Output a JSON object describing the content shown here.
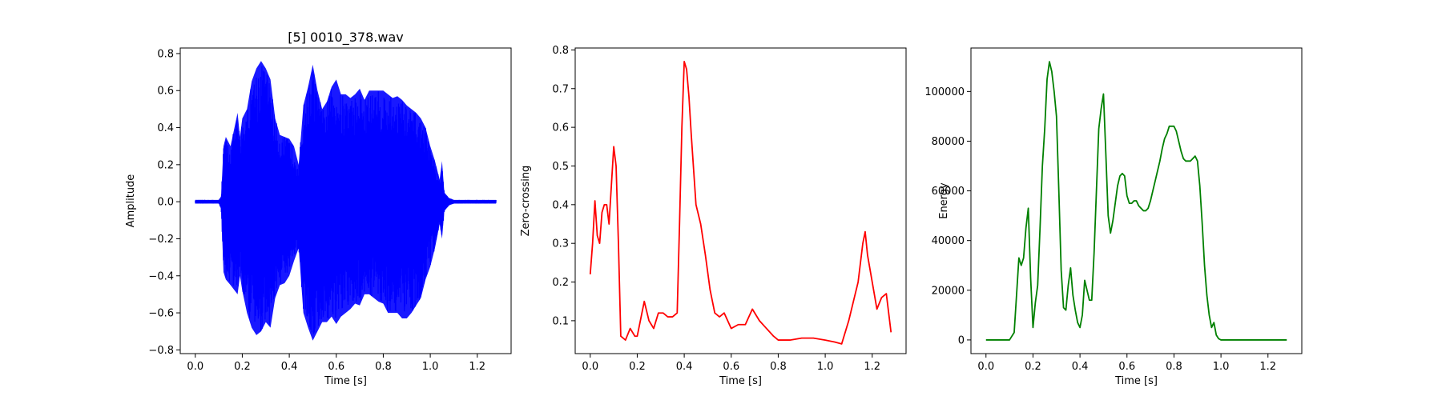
{
  "chart_data": [
    {
      "type": "line",
      "title": "[5] 0010_378.wav",
      "xlabel": "Time [s]",
      "ylabel": "Amplitude",
      "xlim": [
        -0.064,
        1.344
      ],
      "ylim": [
        -0.82,
        0.83
      ],
      "xticks": [
        0.0,
        0.2,
        0.4,
        0.6,
        0.8,
        1.0,
        1.2
      ],
      "xtick_labels": [
        "0.0",
        "0.2",
        "0.4",
        "0.6",
        "0.8",
        "1.0",
        "1.2"
      ],
      "yticks": [
        -0.8,
        -0.6,
        -0.4,
        -0.2,
        0.0,
        0.2,
        0.4,
        0.6,
        0.8
      ],
      "ytick_labels": [
        "−0.8",
        "−0.6",
        "−0.4",
        "−0.2",
        "0.0",
        "0.2",
        "0.4",
        "0.6",
        "0.8"
      ],
      "grid": false,
      "color": "#0000ff",
      "style": "waveform",
      "envelope": {
        "x": [
          0.0,
          0.1,
          0.11,
          0.12,
          0.13,
          0.15,
          0.18,
          0.19,
          0.2,
          0.22,
          0.24,
          0.26,
          0.28,
          0.3,
          0.32,
          0.34,
          0.36,
          0.38,
          0.4,
          0.42,
          0.44,
          0.46,
          0.48,
          0.5,
          0.52,
          0.54,
          0.56,
          0.58,
          0.6,
          0.62,
          0.64,
          0.66,
          0.68,
          0.7,
          0.72,
          0.74,
          0.76,
          0.78,
          0.8,
          0.82,
          0.84,
          0.86,
          0.88,
          0.9,
          0.92,
          0.94,
          0.96,
          0.98,
          1.0,
          1.02,
          1.04,
          1.05,
          1.06,
          1.08,
          1.1,
          1.28
        ],
        "upper": [
          0.01,
          0.01,
          0.03,
          0.3,
          0.35,
          0.3,
          0.48,
          0.35,
          0.45,
          0.5,
          0.65,
          0.72,
          0.76,
          0.72,
          0.66,
          0.45,
          0.36,
          0.35,
          0.34,
          0.3,
          0.2,
          0.52,
          0.62,
          0.74,
          0.6,
          0.5,
          0.54,
          0.62,
          0.66,
          0.58,
          0.58,
          0.56,
          0.58,
          0.61,
          0.55,
          0.6,
          0.6,
          0.6,
          0.6,
          0.58,
          0.56,
          0.57,
          0.55,
          0.52,
          0.5,
          0.48,
          0.45,
          0.4,
          0.3,
          0.22,
          0.12,
          0.22,
          0.05,
          0.02,
          0.01,
          0.01
        ],
        "lower": [
          -0.01,
          -0.01,
          -0.04,
          -0.38,
          -0.42,
          -0.45,
          -0.5,
          -0.4,
          -0.48,
          -0.6,
          -0.68,
          -0.72,
          -0.7,
          -0.65,
          -0.68,
          -0.52,
          -0.45,
          -0.44,
          -0.4,
          -0.32,
          -0.25,
          -0.6,
          -0.68,
          -0.75,
          -0.7,
          -0.65,
          -0.65,
          -0.62,
          -0.66,
          -0.62,
          -0.6,
          -0.58,
          -0.55,
          -0.56,
          -0.5,
          -0.5,
          -0.52,
          -0.54,
          -0.55,
          -0.6,
          -0.6,
          -0.6,
          -0.63,
          -0.63,
          -0.6,
          -0.56,
          -0.52,
          -0.42,
          -0.35,
          -0.25,
          -0.12,
          -0.2,
          -0.05,
          -0.02,
          -0.01,
          -0.01
        ]
      }
    },
    {
      "type": "line",
      "xlabel": "Time [s]",
      "ylabel": "Zero-crossing",
      "xlim": [
        -0.064,
        1.344
      ],
      "ylim": [
        0.015,
        0.805
      ],
      "xticks": [
        0.0,
        0.2,
        0.4,
        0.6,
        0.8,
        1.0,
        1.2
      ],
      "xtick_labels": [
        "0.0",
        "0.2",
        "0.4",
        "0.6",
        "0.8",
        "1.0",
        "1.2"
      ],
      "yticks": [
        0.1,
        0.2,
        0.3,
        0.4,
        0.5,
        0.6,
        0.7,
        0.8
      ],
      "ytick_labels": [
        "0.1",
        "0.2",
        "0.3",
        "0.4",
        "0.5",
        "0.6",
        "0.7",
        "0.8"
      ],
      "grid": false,
      "color": "#ff0000",
      "x": [
        0.0,
        0.01,
        0.02,
        0.03,
        0.04,
        0.05,
        0.06,
        0.07,
        0.08,
        0.09,
        0.1,
        0.11,
        0.12,
        0.13,
        0.15,
        0.17,
        0.19,
        0.2,
        0.22,
        0.23,
        0.25,
        0.27,
        0.29,
        0.31,
        0.33,
        0.35,
        0.37,
        0.38,
        0.39,
        0.4,
        0.41,
        0.42,
        0.43,
        0.45,
        0.47,
        0.49,
        0.51,
        0.53,
        0.55,
        0.57,
        0.6,
        0.63,
        0.66,
        0.69,
        0.72,
        0.75,
        0.78,
        0.8,
        0.85,
        0.9,
        0.95,
        1.0,
        1.04,
        1.07,
        1.1,
        1.12,
        1.14,
        1.16,
        1.17,
        1.18,
        1.2,
        1.22,
        1.24,
        1.26,
        1.28
      ],
      "y": [
        0.22,
        0.3,
        0.41,
        0.32,
        0.3,
        0.38,
        0.4,
        0.4,
        0.35,
        0.45,
        0.55,
        0.5,
        0.3,
        0.06,
        0.05,
        0.08,
        0.06,
        0.06,
        0.12,
        0.15,
        0.1,
        0.08,
        0.12,
        0.12,
        0.11,
        0.11,
        0.12,
        0.35,
        0.6,
        0.77,
        0.75,
        0.68,
        0.58,
        0.4,
        0.35,
        0.27,
        0.18,
        0.12,
        0.11,
        0.12,
        0.08,
        0.09,
        0.09,
        0.13,
        0.1,
        0.08,
        0.06,
        0.05,
        0.05,
        0.055,
        0.055,
        0.05,
        0.045,
        0.04,
        0.1,
        0.15,
        0.2,
        0.3,
        0.33,
        0.27,
        0.2,
        0.13,
        0.16,
        0.17,
        0.07
      ]
    },
    {
      "type": "line",
      "xlabel": "Time [s]",
      "ylabel": "Energy",
      "xlim": [
        -0.064,
        1.344
      ],
      "ylim": [
        -5500,
        117500
      ],
      "xticks": [
        0.0,
        0.2,
        0.4,
        0.6,
        0.8,
        1.0,
        1.2
      ],
      "xtick_labels": [
        "0.0",
        "0.2",
        "0.4",
        "0.6",
        "0.8",
        "1.0",
        "1.2"
      ],
      "yticks": [
        0,
        20000,
        40000,
        60000,
        80000,
        100000
      ],
      "ytick_labels": [
        "0",
        "20000",
        "40000",
        "60000",
        "80000",
        "100000"
      ],
      "grid": false,
      "color": "#008000",
      "x": [
        0.0,
        0.1,
        0.12,
        0.14,
        0.15,
        0.16,
        0.17,
        0.18,
        0.19,
        0.2,
        0.21,
        0.22,
        0.23,
        0.24,
        0.25,
        0.26,
        0.27,
        0.28,
        0.29,
        0.3,
        0.31,
        0.32,
        0.33,
        0.34,
        0.35,
        0.36,
        0.37,
        0.38,
        0.39,
        0.4,
        0.41,
        0.42,
        0.43,
        0.44,
        0.45,
        0.46,
        0.47,
        0.48,
        0.49,
        0.5,
        0.51,
        0.52,
        0.53,
        0.54,
        0.55,
        0.56,
        0.57,
        0.58,
        0.59,
        0.6,
        0.61,
        0.62,
        0.63,
        0.64,
        0.65,
        0.66,
        0.67,
        0.68,
        0.69,
        0.7,
        0.71,
        0.72,
        0.73,
        0.74,
        0.75,
        0.76,
        0.77,
        0.78,
        0.79,
        0.8,
        0.81,
        0.82,
        0.83,
        0.84,
        0.85,
        0.86,
        0.87,
        0.88,
        0.89,
        0.9,
        0.91,
        0.92,
        0.93,
        0.94,
        0.95,
        0.96,
        0.97,
        0.98,
        0.99,
        1.0,
        1.01,
        1.02,
        1.03,
        1.04,
        1.05,
        1.06,
        1.07,
        1.1,
        1.2,
        1.28
      ],
      "y": [
        0,
        0,
        3000,
        33000,
        30000,
        33000,
        45000,
        53000,
        25000,
        5000,
        15000,
        22000,
        45000,
        70000,
        85000,
        105000,
        112000,
        108000,
        100000,
        90000,
        60000,
        28000,
        13000,
        12000,
        22000,
        29000,
        18000,
        12000,
        7000,
        5000,
        10000,
        24000,
        20000,
        16000,
        16000,
        35000,
        60000,
        85000,
        93000,
        99000,
        75000,
        50000,
        43000,
        48000,
        55000,
        62000,
        66000,
        67000,
        66000,
        58000,
        55000,
        55000,
        56000,
        56000,
        54000,
        53000,
        52000,
        52000,
        53000,
        56000,
        60000,
        64000,
        68000,
        72000,
        77000,
        81000,
        83000,
        86000,
        86000,
        86000,
        84000,
        80000,
        76000,
        73000,
        72000,
        72000,
        72000,
        73000,
        74000,
        72000,
        62000,
        47000,
        30000,
        18000,
        10000,
        5000,
        7000,
        2000,
        500,
        0,
        0,
        0,
        0,
        0,
        0,
        0,
        0,
        0,
        0,
        0
      ]
    }
  ]
}
